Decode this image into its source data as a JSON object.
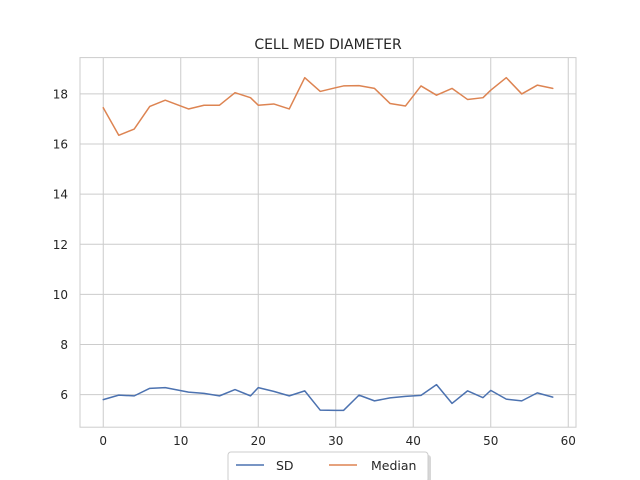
{
  "chart_data": {
    "type": "line",
    "title": "CELL MED DIAMETER",
    "xlabel": "",
    "ylabel": "",
    "xlim": [
      -3,
      61
    ],
    "ylim": [
      4.7,
      19.45
    ],
    "xticks": [
      0,
      10,
      20,
      30,
      40,
      50,
      60
    ],
    "yticks": [
      6,
      8,
      10,
      12,
      14,
      16,
      18
    ],
    "grid": true,
    "legend_position": "bottom-center",
    "x": [
      0,
      2,
      4,
      6,
      8,
      11,
      13,
      15,
      17,
      19,
      20,
      22,
      24,
      26,
      28,
      30,
      31,
      33,
      35,
      37,
      39,
      41,
      43,
      45,
      47,
      49,
      50,
      52,
      54,
      56,
      58
    ],
    "series": [
      {
        "name": "SD",
        "color": "#4c72b0",
        "values": [
          5.8,
          5.98,
          5.95,
          6.25,
          6.28,
          6.1,
          6.05,
          5.95,
          6.2,
          5.95,
          6.28,
          6.13,
          5.95,
          6.15,
          5.38,
          5.37,
          5.37,
          5.98,
          5.75,
          5.87,
          5.93,
          5.97,
          6.4,
          5.65,
          6.15,
          5.88,
          6.17,
          5.82,
          5.75,
          6.07,
          5.9
        ]
      },
      {
        "name": "Median",
        "color": "#dd8452",
        "values": [
          17.45,
          16.35,
          16.6,
          17.5,
          17.75,
          17.4,
          17.55,
          17.55,
          18.05,
          17.85,
          17.55,
          17.6,
          17.4,
          18.65,
          18.1,
          18.25,
          18.32,
          18.33,
          18.22,
          17.62,
          17.52,
          18.32,
          17.95,
          18.22,
          17.78,
          17.85,
          18.15,
          18.65,
          18.0,
          18.35,
          18.22
        ]
      }
    ]
  }
}
